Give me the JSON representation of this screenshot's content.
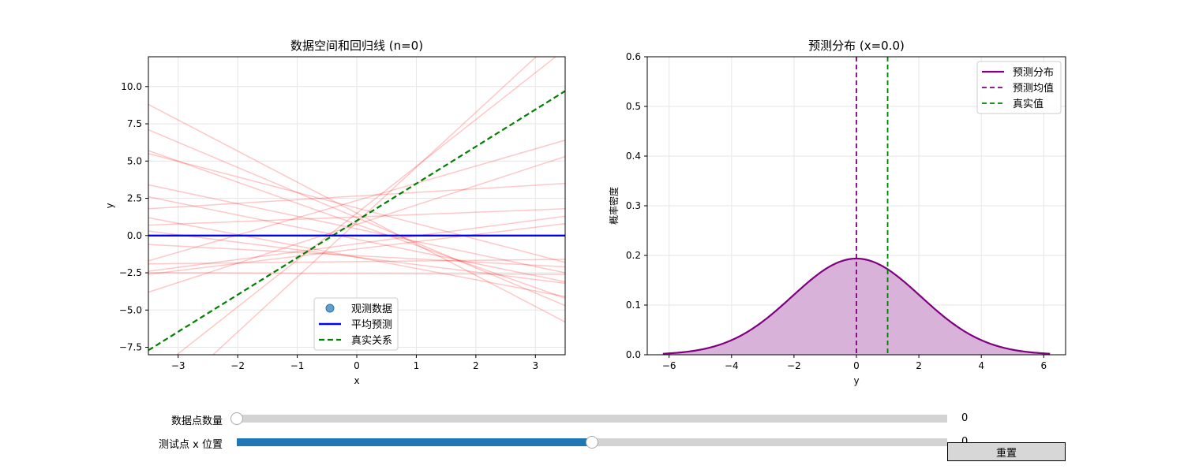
{
  "chart_data": [
    {
      "type": "line",
      "title": "数据空间和回归线 (n=0)",
      "xlabel": "x",
      "ylabel": "y",
      "xlim": [
        -3.5,
        3.5
      ],
      "ylim": [
        -8.0,
        12.0
      ],
      "xticks": [
        -3,
        -2,
        -1,
        0,
        1,
        2,
        3
      ],
      "yticks": [
        -7.5,
        -5.0,
        -2.5,
        0.0,
        2.5,
        5.0,
        7.5,
        10.0
      ],
      "xtick_labels": [
        "−3",
        "−2",
        "−1",
        "0",
        "1",
        "2",
        "3"
      ],
      "ytick_labels": [
        "−7.5",
        "−5.0",
        "−2.5",
        "0.0",
        "2.5",
        "5.0",
        "7.5",
        "10.0"
      ],
      "grid": true,
      "legend_position": "lower-center",
      "legend": [
        "观测数据",
        "平均预测",
        "真实关系"
      ],
      "observed_points": [],
      "mean_prediction": {
        "x": [
          -3.5,
          3.5
        ],
        "y": [
          0.0,
          0.0
        ],
        "color": "#0000ff"
      },
      "true_relation": {
        "x": [
          -3.5,
          3.5
        ],
        "y": [
          -7.7,
          9.7
        ],
        "color": "#008000",
        "style": "dashed"
      },
      "sample_lines": [
        {
          "x": [
            -3.5,
            3.5
          ],
          "y": [
            8.8,
            -5.8
          ]
        },
        {
          "x": [
            -3.5,
            3.5
          ],
          "y": [
            7.1,
            -4.7
          ]
        },
        {
          "x": [
            -3.5,
            3.5
          ],
          "y": [
            5.7,
            -4.2
          ]
        },
        {
          "x": [
            -3.5,
            3.5
          ],
          "y": [
            5.5,
            -1.8
          ]
        },
        {
          "x": [
            -3.5,
            3.5
          ],
          "y": [
            3.4,
            -2.5
          ]
        },
        {
          "x": [
            -3.5,
            3.5
          ],
          "y": [
            2.6,
            -3.1
          ]
        },
        {
          "x": [
            -3.5,
            3.5
          ],
          "y": [
            1.8,
            3.5
          ]
        },
        {
          "x": [
            -3.5,
            3.5
          ],
          "y": [
            1.2,
            -4.1
          ]
        },
        {
          "x": [
            -3.5,
            3.5
          ],
          "y": [
            0.7,
            1.8
          ]
        },
        {
          "x": [
            -3.5,
            3.5
          ],
          "y": [
            0.3,
            -3.2
          ]
        },
        {
          "x": [
            -3.5,
            3.5
          ],
          "y": [
            -0.6,
            -2.1
          ]
        },
        {
          "x": [
            -3.5,
            3.5
          ],
          "y": [
            -1.7,
            6.4
          ]
        },
        {
          "x": [
            -3.5,
            3.5
          ],
          "y": [
            -1.9,
            -1.6
          ]
        },
        {
          "x": [
            -3.5,
            3.5
          ],
          "y": [
            -2.4,
            1.3
          ]
        },
        {
          "x": [
            -3.5,
            3.5
          ],
          "y": [
            -2.5,
            -2.6
          ]
        },
        {
          "x": [
            -3.5,
            3.5
          ],
          "y": [
            -2.6,
            0.8
          ]
        },
        {
          "x": [
            -3.5,
            3.5
          ],
          "y": [
            -3.8,
            5.3
          ]
        },
        {
          "x": [
            -3.5,
            3.5
          ],
          "y": [
            -9.5,
            12.5
          ]
        },
        {
          "x": [
            -3.5,
            3.5
          ],
          "y": [
            -12.0,
            13.8
          ]
        }
      ],
      "sample_line_color": "#ff0000"
    },
    {
      "type": "area",
      "title": "预测分布 (x=0.0)",
      "xlabel": "y",
      "ylabel": "概率密度",
      "xlim": [
        -6.7,
        6.7
      ],
      "ylim": [
        0.0,
        0.6
      ],
      "xticks": [
        -6,
        -4,
        -2,
        0,
        2,
        4,
        6
      ],
      "yticks": [
        0.0,
        0.1,
        0.2,
        0.3,
        0.4,
        0.5,
        0.6
      ],
      "xtick_labels": [
        "−6",
        "−4",
        "−2",
        "0",
        "2",
        "4",
        "6"
      ],
      "ytick_labels": [
        "0.0",
        "0.1",
        "0.2",
        "0.3",
        "0.4",
        "0.5",
        "0.6"
      ],
      "grid": true,
      "legend_position": "top-right",
      "legend": [
        "预测分布",
        "预测均值",
        "真实值"
      ],
      "predictive_distribution": {
        "mean": 0.0,
        "std": 2.06,
        "x_range": [
          -6.2,
          6.2
        ],
        "color": "#800080",
        "fill_color": "#d8b2d8"
      },
      "predicted_mean": {
        "x": 0.0,
        "color": "#800080",
        "style": "dashed"
      },
      "true_value": {
        "x": 1.0,
        "color": "#008000",
        "style": "dashed"
      }
    }
  ],
  "controls": {
    "data_count": {
      "label": "数据点数量",
      "value": "0",
      "fraction": 0.0
    },
    "test_x": {
      "label": "测试点 x 位置",
      "value": "0",
      "fraction": 0.5
    },
    "reset_label": "重置"
  }
}
